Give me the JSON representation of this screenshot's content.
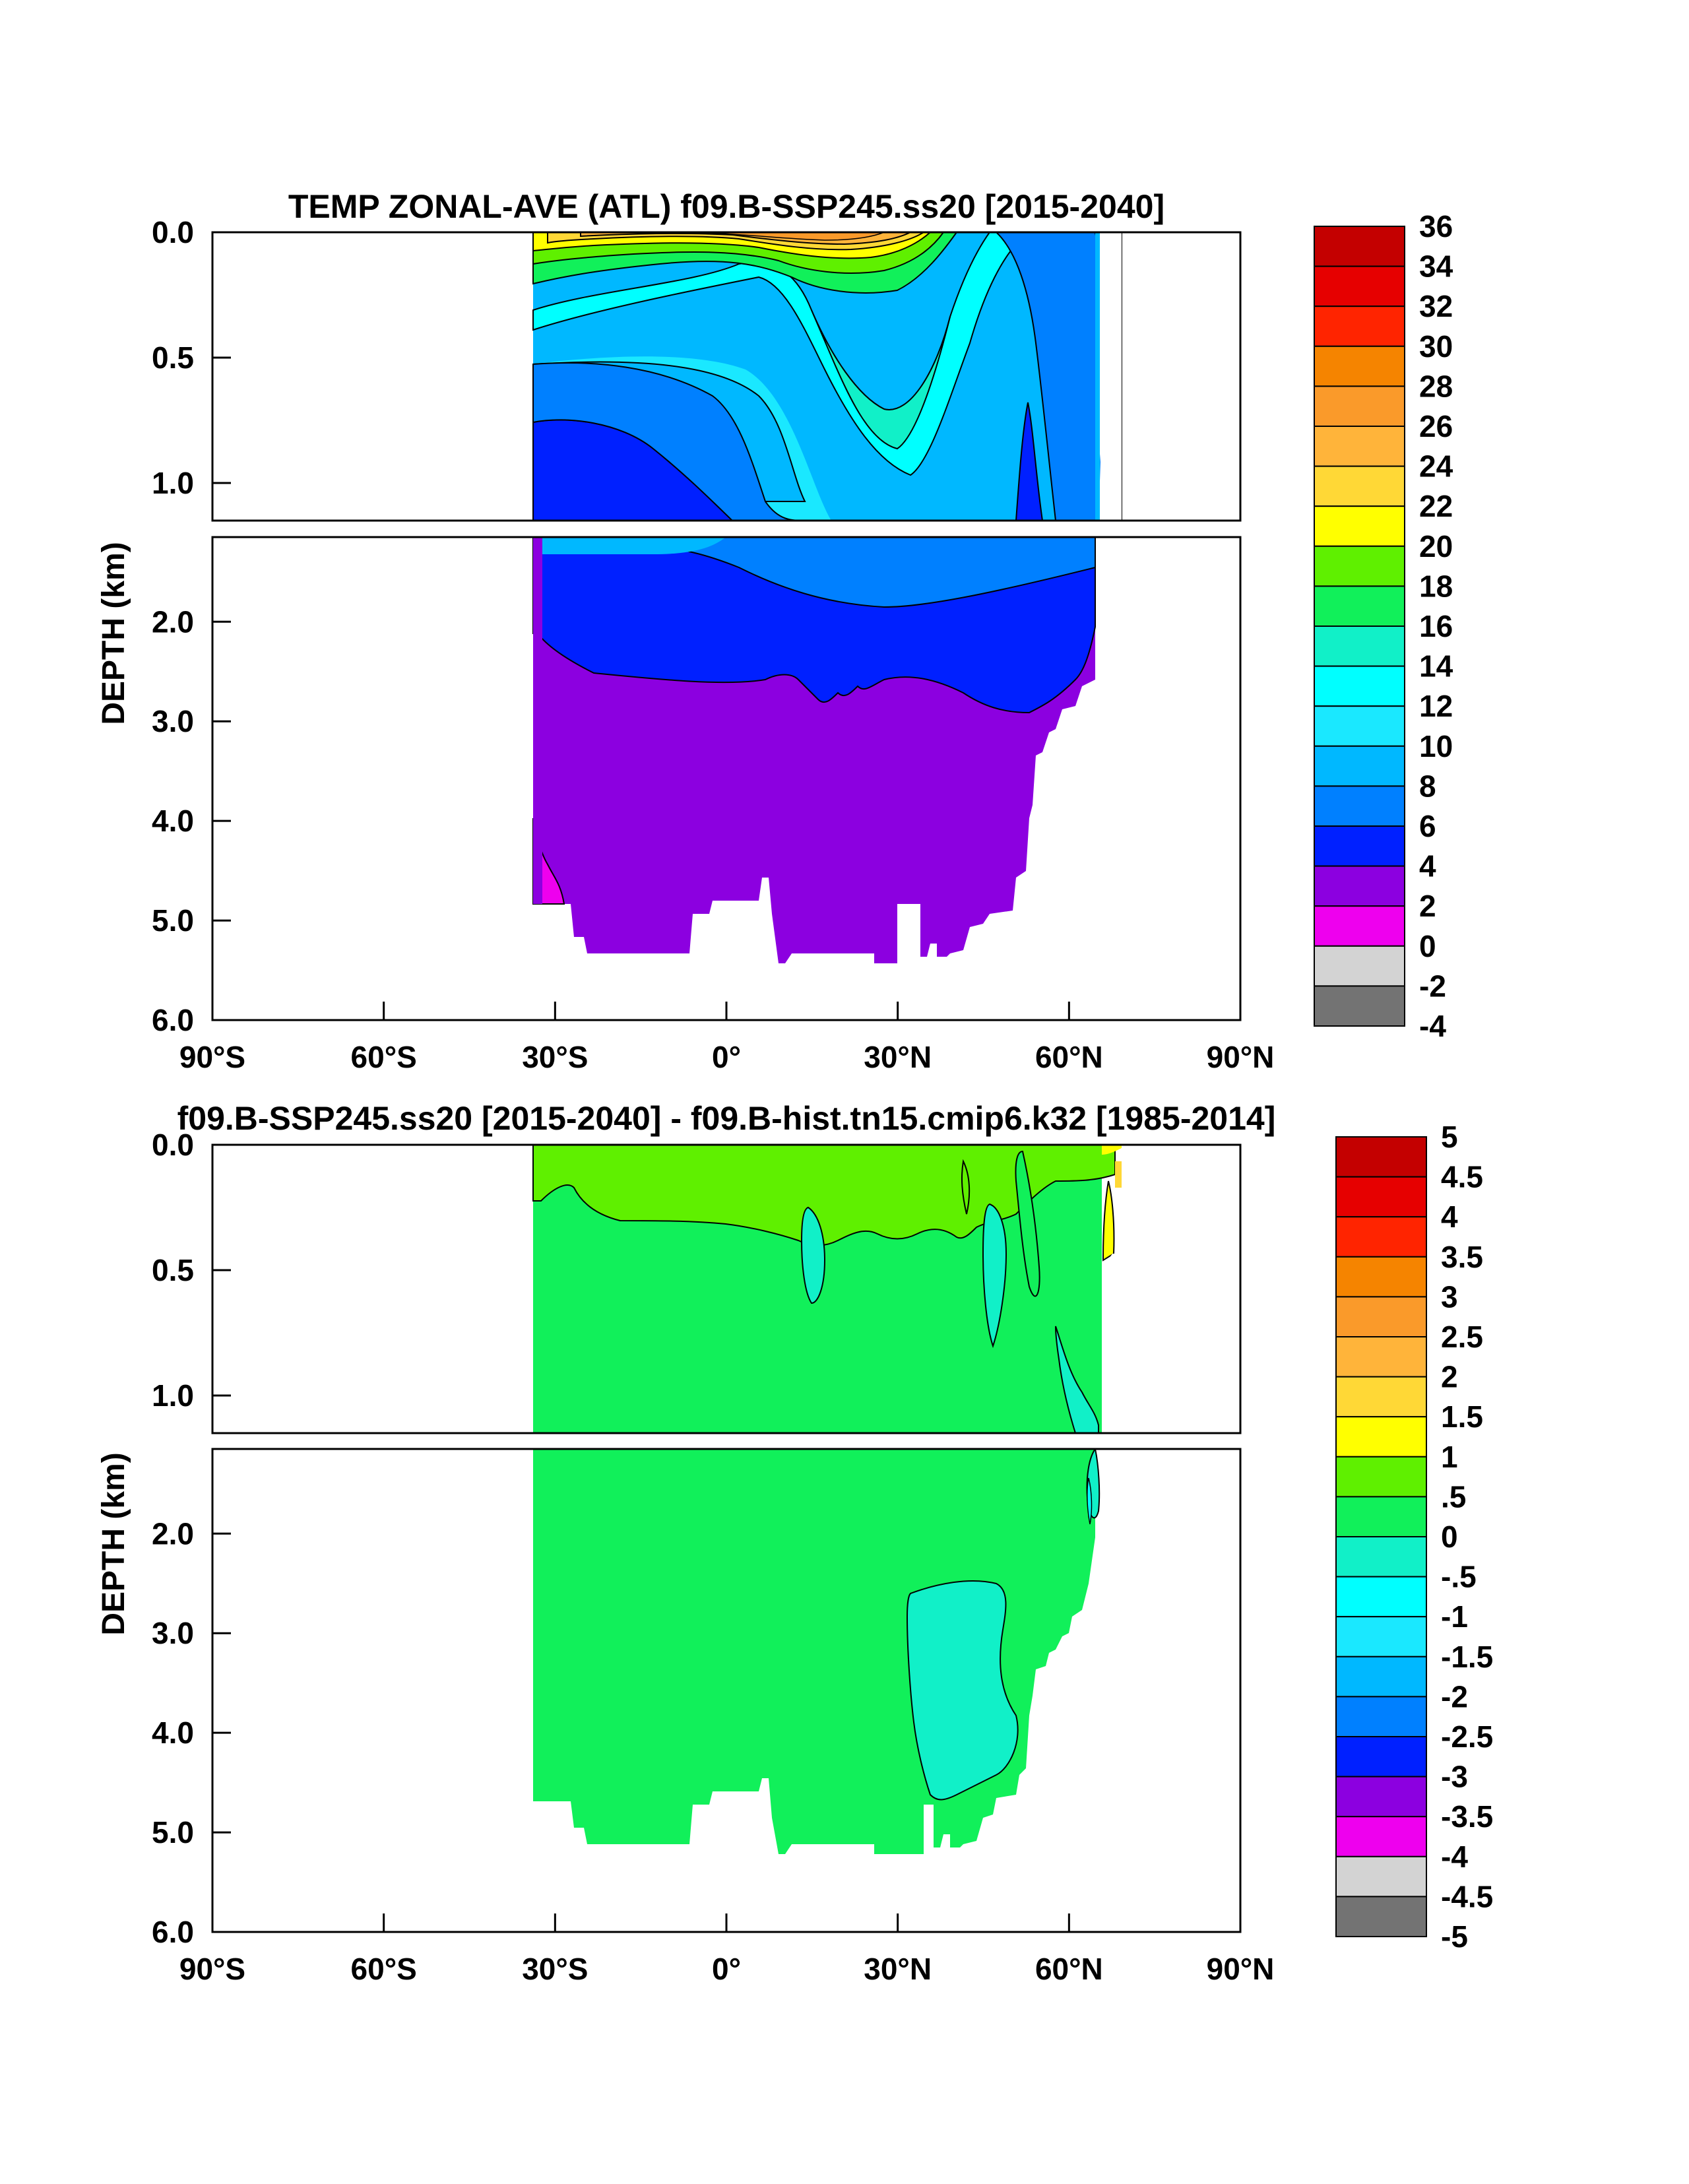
{
  "chart_data": [
    {
      "type": "heatmap",
      "title": "TEMP ZONAL-AVE (ATL) f09.B-SSP245.ss20 [2015-2040]",
      "ylabel": "DEPTH (km)",
      "xlabel": "",
      "xlim": [
        -90,
        90
      ],
      "ylim": [
        6.0,
        0.0
      ],
      "x_ticks": [
        -90,
        -60,
        -30,
        0,
        30,
        60,
        90
      ],
      "x_tick_labels": [
        "90°S",
        "60°S",
        "30°S",
        "0°",
        "30°N",
        "60°N",
        "90°N"
      ],
      "y_ticks_upper": [
        0.0,
        0.5,
        1.0
      ],
      "y_tick_labels_upper": [
        "0.0",
        "0.5",
        "1.0"
      ],
      "y_ticks_lower": [
        2.0,
        3.0,
        4.0,
        5.0,
        6.0
      ],
      "y_tick_labels_lower": [
        "2.0",
        "3.0",
        "4.0",
        "5.0",
        "6.0"
      ],
      "data_extent_lat": [
        -34,
        67
      ],
      "colorbar": {
        "levels": [
          "36",
          "34",
          "32",
          "30",
          "28",
          "26",
          "24",
          "22",
          "20",
          "18",
          "16",
          "14",
          "12",
          "10",
          "8",
          "6",
          "4",
          "2",
          "0",
          "-2",
          "-4"
        ],
        "colors": [
          "#c40000",
          "#e60000",
          "#ff2400",
          "#f58400",
          "#fa9a2a",
          "#ffb43a",
          "#ffd836",
          "#ffff00",
          "#5ff000",
          "#11f05a",
          "#11f0c8",
          "#00ffff",
          "#1ae8ff",
          "#00b8ff",
          "#0080ff",
          "#0020ff",
          "#8c00e0",
          "#ee00ee",
          "#d3d3d3",
          "#737373"
        ]
      }
    },
    {
      "type": "heatmap",
      "title": "f09.B-SSP245.ss20 [2015-2040] - f09.B-hist.tn15.cmip6.k32 [1985-2014]",
      "ylabel": "DEPTH (km)",
      "xlabel": "",
      "xlim": [
        -90,
        90
      ],
      "ylim": [
        6.0,
        0.0
      ],
      "x_ticks": [
        -90,
        -60,
        -30,
        0,
        30,
        60,
        90
      ],
      "x_tick_labels": [
        "90°S",
        "60°S",
        "30°S",
        "0°",
        "30°N",
        "60°N",
        "90°N"
      ],
      "y_ticks_upper": [
        0.0,
        0.5,
        1.0
      ],
      "y_tick_labels_upper": [
        "0.0",
        "0.5",
        "1.0"
      ],
      "y_ticks_lower": [
        2.0,
        3.0,
        4.0,
        5.0,
        6.0
      ],
      "y_tick_labels_lower": [
        "2.0",
        "3.0",
        "4.0",
        "5.0",
        "6.0"
      ],
      "data_extent_lat": [
        -34,
        67
      ],
      "colorbar": {
        "levels": [
          "5",
          "4.5",
          "4",
          "3.5",
          "3",
          "2.5",
          "2",
          "1.5",
          "1",
          ".5",
          "0",
          "-.5",
          "-1",
          "-1.5",
          "-2",
          "-2.5",
          "-3",
          "-3.5",
          "-4",
          "-4.5",
          "-5"
        ],
        "colors": [
          "#c40000",
          "#e60000",
          "#ff2400",
          "#f58400",
          "#fa9a2a",
          "#ffb43a",
          "#ffd836",
          "#ffff00",
          "#5ff000",
          "#11f05a",
          "#11f0c8",
          "#00ffff",
          "#1ae8ff",
          "#00b8ff",
          "#0080ff",
          "#0020ff",
          "#8c00e0",
          "#ee00ee",
          "#d3d3d3",
          "#737373"
        ]
      }
    }
  ]
}
